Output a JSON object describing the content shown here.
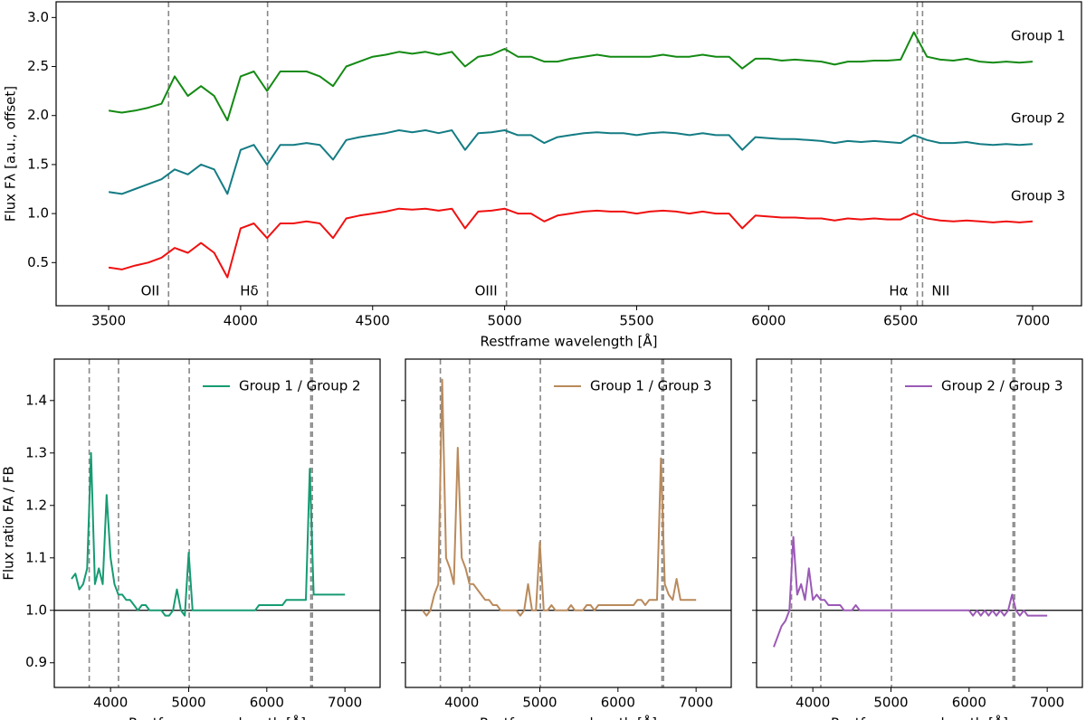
{
  "chart_data": [
    {
      "type": "line",
      "xlabel": "Restframe wavelength [Å]",
      "ylabel": "Flux Fλ [a.u., offset]",
      "xlim": [
        3301,
        7185
      ],
      "ylim": [
        0.06,
        3.16
      ],
      "xticks": [
        3500,
        4000,
        4500,
        5000,
        5500,
        6000,
        6500,
        7000
      ],
      "yticks": [
        0.5,
        {
          "value": 1,
          "label": "1.0"
        },
        1.5,
        {
          "value": 2,
          "label": "2.0"
        },
        2.5,
        {
          "value": 3,
          "label": "3.0"
        }
      ],
      "legend": "inline",
      "vlines": [
        3727,
        4102,
        5007,
        6563,
        6583
      ],
      "annotations": [
        {
          "text": "OII",
          "x": 3727,
          "align": "left"
        },
        {
          "text": "Hδ",
          "x": 4102,
          "align": "left"
        },
        {
          "text": "OIII",
          "x": 5007,
          "align": "left"
        },
        {
          "text": "Hα",
          "x": 6563,
          "align": "left"
        },
        {
          "text": "NII",
          "x": 6583,
          "align": "right"
        }
      ],
      "x": [
        3500,
        3550,
        3600,
        3650,
        3700,
        3750,
        3800,
        3850,
        3900,
        3950,
        4000,
        4050,
        4100,
        4150,
        4200,
        4250,
        4300,
        4350,
        4400,
        4450,
        4500,
        4550,
        4600,
        4650,
        4700,
        4750,
        4800,
        4850,
        4900,
        4950,
        5000,
        5050,
        5100,
        5150,
        5200,
        5250,
        5300,
        5350,
        5400,
        5450,
        5500,
        5550,
        5600,
        5650,
        5700,
        5750,
        5800,
        5850,
        5900,
        5950,
        6000,
        6050,
        6100,
        6150,
        6200,
        6250,
        6300,
        6350,
        6400,
        6450,
        6500,
        6550,
        6600,
        6650,
        6700,
        6750,
        6800,
        6850,
        6900,
        6950,
        7000
      ],
      "series": [
        {
          "name": "Group 1",
          "color": "#138a13",
          "values": [
            2.05,
            2.03,
            2.05,
            2.08,
            2.12,
            2.4,
            2.2,
            2.3,
            2.2,
            1.95,
            2.4,
            2.45,
            2.25,
            2.45,
            2.45,
            2.45,
            2.4,
            2.3,
            2.5,
            2.55,
            2.6,
            2.62,
            2.65,
            2.63,
            2.65,
            2.62,
            2.65,
            2.5,
            2.6,
            2.62,
            2.68,
            2.6,
            2.6,
            2.55,
            2.55,
            2.58,
            2.6,
            2.62,
            2.6,
            2.6,
            2.6,
            2.6,
            2.62,
            2.6,
            2.6,
            2.62,
            2.6,
            2.6,
            2.48,
            2.58,
            2.58,
            2.56,
            2.57,
            2.56,
            2.55,
            2.52,
            2.55,
            2.55,
            2.56,
            2.56,
            2.57,
            2.85,
            2.6,
            2.57,
            2.56,
            2.58,
            2.55,
            2.54,
            2.55,
            2.54,
            2.55
          ]
        },
        {
          "name": "Group 2",
          "color": "#147c84",
          "values": [
            1.22,
            1.2,
            1.25,
            1.3,
            1.35,
            1.45,
            1.4,
            1.5,
            1.45,
            1.2,
            1.65,
            1.7,
            1.5,
            1.7,
            1.7,
            1.72,
            1.7,
            1.55,
            1.75,
            1.78,
            1.8,
            1.82,
            1.85,
            1.83,
            1.85,
            1.82,
            1.85,
            1.65,
            1.82,
            1.83,
            1.85,
            1.8,
            1.8,
            1.72,
            1.78,
            1.8,
            1.82,
            1.83,
            1.82,
            1.82,
            1.8,
            1.82,
            1.83,
            1.82,
            1.8,
            1.82,
            1.8,
            1.8,
            1.65,
            1.78,
            1.77,
            1.76,
            1.76,
            1.75,
            1.74,
            1.72,
            1.74,
            1.73,
            1.74,
            1.73,
            1.72,
            1.8,
            1.75,
            1.72,
            1.72,
            1.73,
            1.71,
            1.7,
            1.71,
            1.7,
            1.71
          ]
        },
        {
          "name": "Group 3",
          "color": "#f01010",
          "values": [
            0.45,
            0.43,
            0.47,
            0.5,
            0.55,
            0.65,
            0.6,
            0.7,
            0.6,
            0.35,
            0.85,
            0.9,
            0.75,
            0.9,
            0.9,
            0.92,
            0.9,
            0.75,
            0.95,
            0.98,
            1.0,
            1.02,
            1.05,
            1.04,
            1.05,
            1.03,
            1.05,
            0.85,
            1.02,
            1.03,
            1.05,
            1.0,
            1.0,
            0.92,
            0.98,
            1.0,
            1.02,
            1.03,
            1.02,
            1.02,
            1.0,
            1.02,
            1.03,
            1.02,
            1.0,
            1.02,
            1.0,
            1.0,
            0.85,
            0.98,
            0.97,
            0.96,
            0.96,
            0.95,
            0.95,
            0.93,
            0.95,
            0.94,
            0.95,
            0.94,
            0.94,
            1.0,
            0.95,
            0.93,
            0.92,
            0.93,
            0.92,
            0.91,
            0.92,
            0.91,
            0.92
          ]
        }
      ]
    },
    {
      "type": "line",
      "xlabel": "Restframe wavelength [Å]",
      "ylabel": "Flux ratio FA / FB",
      "xlim": [
        3280,
        7450
      ],
      "ylim": [
        0.853,
        1.479
      ],
      "xticks": [
        4000,
        5000,
        6000,
        7000
      ],
      "yticks": [
        0.9,
        {
          "value": 1,
          "label": "1.0"
        },
        1.1,
        1.2,
        1.3,
        1.4
      ],
      "legend": "upper right",
      "hline": 1,
      "vlines": [
        3727,
        4102,
        5007,
        6563,
        6583
      ],
      "x": [
        3500,
        3550,
        3600,
        3650,
        3700,
        3750,
        3800,
        3850,
        3900,
        3950,
        4000,
        4050,
        4100,
        4150,
        4200,
        4250,
        4300,
        4350,
        4400,
        4450,
        4500,
        4550,
        4600,
        4650,
        4700,
        4750,
        4800,
        4850,
        4900,
        4950,
        5000,
        5050,
        5100,
        5150,
        5200,
        5250,
        5300,
        5350,
        5400,
        5450,
        5500,
        5550,
        5600,
        5650,
        5700,
        5750,
        5800,
        5850,
        5900,
        5950,
        6000,
        6050,
        6100,
        6150,
        6200,
        6250,
        6300,
        6350,
        6400,
        6450,
        6500,
        6550,
        6600,
        6650,
        6700,
        6750,
        6800,
        6850,
        6900,
        6950,
        7000
      ],
      "series": [
        {
          "name": "Group 1 / Group 2",
          "color": "#169b72",
          "values": [
            1.06,
            1.07,
            1.04,
            1.05,
            1.08,
            1.3,
            1.05,
            1.08,
            1.05,
            1.22,
            1.1,
            1.05,
            1.03,
            1.03,
            1.02,
            1.02,
            1.01,
            1.0,
            1.01,
            1.01,
            1.0,
            1.0,
            1.0,
            1.0,
            0.99,
            0.99,
            1.0,
            1.04,
            1.0,
            0.99,
            1.11,
            1.0,
            1.0,
            1.0,
            1.0,
            1.0,
            1.0,
            1.0,
            1.0,
            1.0,
            1.0,
            1.0,
            1.0,
            1.0,
            1.0,
            1.0,
            1.0,
            1.0,
            1.01,
            1.01,
            1.01,
            1.01,
            1.01,
            1.01,
            1.01,
            1.02,
            1.02,
            1.02,
            1.02,
            1.02,
            1.02,
            1.27,
            1.03,
            1.03,
            1.03,
            1.03,
            1.03,
            1.03,
            1.03,
            1.03,
            1.03
          ]
        }
      ]
    },
    {
      "type": "line",
      "xlabel": "Restframe wavelength [Å]",
      "xlim": [
        3280,
        7450
      ],
      "ylim": [
        0.853,
        1.479
      ],
      "xticks": [
        4000,
        5000,
        6000,
        7000
      ],
      "yticks": [
        0.9,
        1,
        1.1,
        1.2,
        1.3,
        1.4
      ],
      "ytick_labels": false,
      "legend": "upper right",
      "hline": 1,
      "vlines": [
        3727,
        4102,
        5007,
        6563,
        6583
      ],
      "x": [
        3500,
        3550,
        3600,
        3650,
        3700,
        3750,
        3800,
        3850,
        3900,
        3950,
        4000,
        4050,
        4100,
        4150,
        4200,
        4250,
        4300,
        4350,
        4400,
        4450,
        4500,
        4550,
        4600,
        4650,
        4700,
        4750,
        4800,
        4850,
        4900,
        4950,
        5000,
        5050,
        5100,
        5150,
        5200,
        5250,
        5300,
        5350,
        5400,
        5450,
        5500,
        5550,
        5600,
        5650,
        5700,
        5750,
        5800,
        5850,
        5900,
        5950,
        6000,
        6050,
        6100,
        6150,
        6200,
        6250,
        6300,
        6350,
        6400,
        6450,
        6500,
        6550,
        6600,
        6650,
        6700,
        6750,
        6800,
        6850,
        6900,
        6950,
        7000
      ],
      "series": [
        {
          "name": "Group 1 / Group 3",
          "color": "#b98a5c",
          "values": [
            1.0,
            0.99,
            1.0,
            1.03,
            1.05,
            1.44,
            1.1,
            1.08,
            1.05,
            1.31,
            1.1,
            1.08,
            1.05,
            1.05,
            1.04,
            1.03,
            1.02,
            1.02,
            1.01,
            1.01,
            1.0,
            1.0,
            1.0,
            1.0,
            1.0,
            0.99,
            1.0,
            1.05,
            1.0,
            1.0,
            1.13,
            1.0,
            1.0,
            1.01,
            1.0,
            1.0,
            1.0,
            1.0,
            1.01,
            1.0,
            1.0,
            1.0,
            1.01,
            1.01,
            1.0,
            1.01,
            1.01,
            1.01,
            1.01,
            1.01,
            1.01,
            1.01,
            1.01,
            1.01,
            1.01,
            1.02,
            1.02,
            1.01,
            1.02,
            1.02,
            1.02,
            1.29,
            1.05,
            1.03,
            1.02,
            1.06,
            1.02,
            1.02,
            1.02,
            1.02,
            1.02
          ]
        }
      ]
    },
    {
      "type": "line",
      "xlabel": "Restframe wavelength [Å]",
      "xlim": [
        3280,
        7450
      ],
      "ylim": [
        0.853,
        1.479
      ],
      "xticks": [
        4000,
        5000,
        6000,
        7000
      ],
      "yticks": [
        0.9,
        1,
        1.1,
        1.2,
        1.3,
        1.4
      ],
      "ytick_labels": false,
      "legend": "upper right",
      "hline": 1,
      "vlines": [
        3727,
        4102,
        5007,
        6563,
        6583
      ],
      "x": [
        3500,
        3550,
        3600,
        3650,
        3700,
        3750,
        3800,
        3850,
        3900,
        3950,
        4000,
        4050,
        4100,
        4150,
        4200,
        4250,
        4300,
        4350,
        4400,
        4450,
        4500,
        4550,
        4600,
        4650,
        4700,
        4750,
        4800,
        4850,
        4900,
        4950,
        5000,
        5050,
        5100,
        5150,
        5200,
        5250,
        5300,
        5350,
        5400,
        5450,
        5500,
        5550,
        5600,
        5650,
        5700,
        5750,
        5800,
        5850,
        5900,
        5950,
        6000,
        6050,
        6100,
        6150,
        6200,
        6250,
        6300,
        6350,
        6400,
        6450,
        6500,
        6550,
        6600,
        6650,
        6700,
        6750,
        6800,
        6850,
        6900,
        6950,
        7000
      ],
      "series": [
        {
          "name": "Group 2 / Group 3",
          "color": "#9b59b6",
          "values": [
            0.93,
            0.95,
            0.97,
            0.98,
            1.0,
            1.14,
            1.03,
            1.05,
            1.02,
            1.08,
            1.02,
            1.03,
            1.02,
            1.02,
            1.01,
            1.01,
            1.01,
            1.01,
            1.0,
            1.0,
            1.0,
            1.01,
            1.0,
            1.0,
            1.0,
            1.0,
            1.0,
            1.0,
            1.0,
            1.0,
            1.0,
            1.0,
            1.0,
            1.0,
            1.0,
            1.0,
            1.0,
            1.0,
            1.0,
            1.0,
            1.0,
            1.0,
            1.0,
            1.0,
            1.0,
            1.0,
            1.0,
            1.0,
            1.0,
            1.0,
            1.0,
            0.99,
            1.0,
            0.99,
            1.0,
            0.99,
            1.0,
            0.99,
            1.0,
            0.99,
            1.0,
            1.03,
            1.0,
            0.99,
            1.0,
            0.99,
            0.99,
            0.99,
            0.99,
            0.99,
            0.99
          ]
        }
      ]
    }
  ]
}
